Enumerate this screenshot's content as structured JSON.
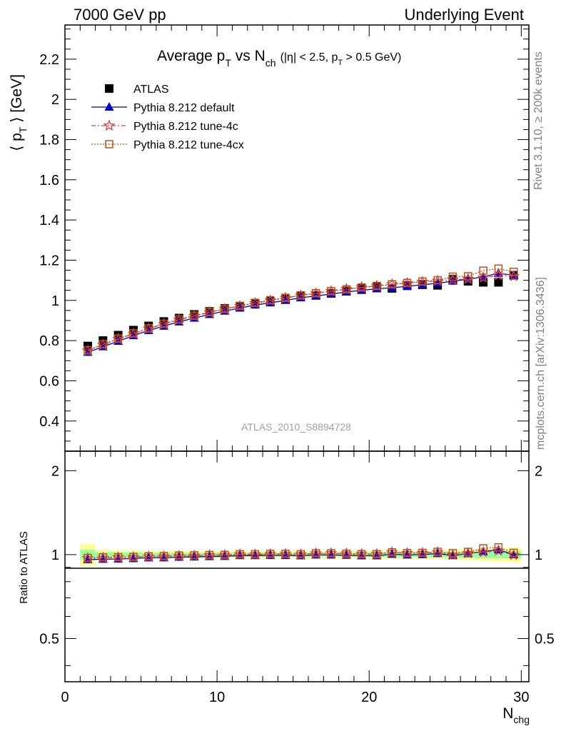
{
  "header": {
    "left": "7000 GeV pp",
    "right": "Underlying Event"
  },
  "side_labels": {
    "rivet": "Rivet 3.1.10, ≥ 200k events",
    "mcplots": "mcplots.cern.ch [arXiv:1306.3436]"
  },
  "chart_data": [
    {
      "type": "scatter",
      "title": {
        "main": "Average p",
        "sub1": "T",
        "mid": " vs N",
        "sub2": "ch",
        "cond": "(|η| < 2.5, p",
        "sub3": "T",
        "cond_end": " > 0.5 GeV)"
      },
      "ylabel": "⟨ p_T ⟩ [GeV]",
      "ylim": [
        0.25,
        2.37
      ],
      "xlim": [
        0,
        30.5
      ],
      "yticks": [
        "0.4",
        "0.6",
        "0.8",
        "1",
        "1.2",
        "1.4",
        "1.6",
        "1.8",
        "2",
        "2.2"
      ],
      "watermark": "ATLAS_2010_S8894728",
      "legend_position": "top-left",
      "x": [
        1.5,
        2.5,
        3.5,
        4.5,
        5.5,
        6.5,
        7.5,
        8.5,
        9.5,
        10.5,
        11.5,
        12.5,
        13.5,
        14.5,
        15.5,
        16.5,
        17.5,
        18.5,
        19.5,
        20.5,
        21.5,
        22.5,
        23.5,
        24.5,
        25.5,
        26.5,
        27.5,
        28.5,
        29.5
      ],
      "series": [
        {
          "name": "ATLAS",
          "color": "#000000",
          "marker": "square",
          "values": [
            0.773,
            0.8,
            0.827,
            0.852,
            0.873,
            0.895,
            0.912,
            0.93,
            0.945,
            0.96,
            0.97,
            0.985,
            0.995,
            1.007,
            1.022,
            1.025,
            1.035,
            1.047,
            1.06,
            1.068,
            1.06,
            1.073,
            1.078,
            1.075,
            1.105,
            1.095,
            1.09,
            1.09,
            1.125
          ]
        },
        {
          "name": "Pythia 8.212 default",
          "color": "#0000cc",
          "marker": "triangle",
          "values": [
            0.742,
            0.77,
            0.797,
            0.825,
            0.85,
            0.872,
            0.893,
            0.912,
            0.93,
            0.947,
            0.962,
            0.977,
            0.988,
            1.0,
            1.013,
            1.022,
            1.032,
            1.042,
            1.05,
            1.058,
            1.063,
            1.07,
            1.078,
            1.085,
            1.096,
            1.105,
            1.118,
            1.135,
            1.125
          ]
        },
        {
          "name": "Pythia 8.212 tune-4c",
          "color": "#e03c3c",
          "marker": "star",
          "values": [
            0.75,
            0.779,
            0.808,
            0.834,
            0.859,
            0.882,
            0.903,
            0.922,
            0.94,
            0.957,
            0.972,
            0.986,
            0.999,
            1.012,
            1.024,
            1.035,
            1.046,
            1.056,
            1.065,
            1.072,
            1.08,
            1.086,
            1.092,
            1.097,
            1.102,
            1.107,
            1.113,
            1.125,
            1.12
          ]
        },
        {
          "name": "Pythia 8.212 tune-4cx",
          "color": "#c0501a",
          "marker": "opensquare",
          "values": [
            0.752,
            0.782,
            0.81,
            0.836,
            0.861,
            0.884,
            0.905,
            0.924,
            0.942,
            0.958,
            0.973,
            0.988,
            1.001,
            1.013,
            1.025,
            1.036,
            1.046,
            1.055,
            1.064,
            1.072,
            1.08,
            1.087,
            1.094,
            1.1,
            1.118,
            1.12,
            1.148,
            1.158,
            1.142
          ]
        }
      ]
    },
    {
      "type": "scatter",
      "ylabel": "Ratio to ATLAS",
      "xlabel": "N_chg",
      "ylim": [
        0.35,
        2.35
      ],
      "xlim": [
        0,
        30.5
      ],
      "yticks": [
        "0.5",
        "1",
        "2"
      ],
      "xticks": [
        "0",
        "10",
        "20",
        "30"
      ],
      "band_color_outer": "#ffff99",
      "band_color_inner": "#99ff99",
      "band_half_width_outer": [
        0.09,
        0.04,
        0.035,
        0.035,
        0.03,
        0.03,
        0.03,
        0.03,
        0.03,
        0.03,
        0.03,
        0.03,
        0.03,
        0.03,
        0.03,
        0.03,
        0.03,
        0.03,
        0.03,
        0.035,
        0.035,
        0.035,
        0.035,
        0.035,
        0.04,
        0.045,
        0.05,
        0.055,
        0.06
      ],
      "band_half_width_inner": [
        0.04,
        0.02,
        0.02,
        0.02,
        0.015,
        0.015,
        0.015,
        0.015,
        0.015,
        0.015,
        0.015,
        0.015,
        0.015,
        0.015,
        0.015,
        0.015,
        0.015,
        0.015,
        0.015,
        0.02,
        0.02,
        0.02,
        0.02,
        0.02,
        0.025,
        0.025,
        0.03,
        0.03,
        0.03
      ],
      "series": [
        {
          "name": "Pythia 8.212 default",
          "values": [
            0.96,
            0.963,
            0.964,
            0.968,
            0.974,
            0.974,
            0.979,
            0.981,
            0.984,
            0.986,
            0.992,
            0.992,
            0.993,
            0.993,
            0.991,
            0.997,
            0.997,
            0.995,
            0.991,
            0.991,
            1.003,
            0.997,
            1.0,
            1.009,
            0.992,
            1.009,
            1.026,
            1.041,
            1.0
          ]
        },
        {
          "name": "Pythia 8.212 tune-4c",
          "values": [
            0.97,
            0.974,
            0.977,
            0.979,
            0.984,
            0.985,
            0.99,
            0.991,
            0.995,
            0.997,
            1.002,
            1.001,
            1.004,
            1.005,
            1.002,
            1.01,
            1.011,
            1.009,
            1.005,
            1.004,
            1.019,
            1.012,
            1.013,
            1.02,
            0.997,
            1.011,
            1.021,
            1.032,
            0.996
          ]
        },
        {
          "name": "Pythia 8.212 tune-4cx",
          "values": [
            0.973,
            0.978,
            0.979,
            0.981,
            0.986,
            0.988,
            0.992,
            0.994,
            0.997,
            0.998,
            1.003,
            1.003,
            1.006,
            1.006,
            1.003,
            1.011,
            1.011,
            1.008,
            1.004,
            1.004,
            1.019,
            1.013,
            1.015,
            1.023,
            1.012,
            1.023,
            1.053,
            1.062,
            1.015
          ]
        }
      ]
    }
  ]
}
